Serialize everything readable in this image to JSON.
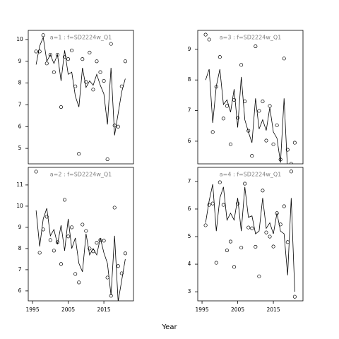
{
  "xlabel": "Year",
  "chart_data": [
    {
      "type": "scatter",
      "title": "a=1  :  f=SD2224w_Q1",
      "color": "#000000",
      "x": [
        1996,
        1997,
        1998,
        1999,
        2000,
        2001,
        2002,
        2003,
        2004,
        2005,
        2006,
        2007,
        2008,
        2009,
        2010,
        2011,
        2012,
        2013,
        2014,
        2015,
        2016,
        2017,
        2018,
        2019,
        2020,
        2021
      ],
      "values": [
        9.45,
        9.45,
        10.2,
        8.9,
        9.3,
        8.5,
        9.3,
        6.9,
        9.2,
        9.1,
        9.5,
        7.85,
        4.75,
        9.1,
        8.05,
        9.4,
        7.7,
        9.0,
        8.5,
        8.1,
        4.5,
        9.8,
        6.05,
        6.0,
        7.85,
        9.0
      ],
      "line_values": [
        8.85,
        9.7,
        10.1,
        9.0,
        9.3,
        8.9,
        9.3,
        8.1,
        9.5,
        8.4,
        8.5,
        7.4,
        6.9,
        8.7,
        7.8,
        8.1,
        7.9,
        8.4,
        7.9,
        7.5,
        6.1,
        8.7,
        5.6,
        6.6,
        7.6,
        8.2
      ],
      "xlim": [
        1993.8,
        2023.3
      ],
      "ylim": [
        4.29,
        10.42
      ],
      "yticks": [
        5,
        6,
        7,
        8,
        9,
        10
      ]
    },
    {
      "type": "scatter",
      "title": "a=3  :  f=SD2224w_Q1",
      "color": "#000000",
      "x": [
        1996,
        1997,
        1998,
        1999,
        2000,
        2001,
        2002,
        2003,
        2004,
        2005,
        2006,
        2007,
        2008,
        2009,
        2010,
        2011,
        2012,
        2013,
        2014,
        2015,
        2016,
        2017,
        2018,
        2019,
        2020,
        2021
      ],
      "values": [
        9.48,
        9.32,
        6.3,
        7.78,
        8.75,
        6.74,
        7.15,
        5.9,
        7.35,
        6.76,
        8.49,
        7.3,
        6.34,
        5.52,
        9.1,
        6.99,
        7.3,
        6.02,
        7.15,
        5.9,
        6.52,
        5.4,
        8.7,
        5.72,
        5.26,
        5.95
      ],
      "line_values": [
        8.0,
        8.35,
        6.6,
        7.8,
        8.35,
        7.2,
        7.35,
        6.95,
        7.7,
        6.45,
        8.1,
        6.7,
        6.3,
        5.95,
        7.4,
        6.4,
        6.7,
        6.35,
        7.1,
        6.3,
        6.1,
        5.3,
        7.4,
        5.0,
        5.2,
        4.9
      ],
      "xlim": [
        1993.8,
        2023.3
      ],
      "ylim": [
        5.26,
        9.62
      ],
      "yticks": [
        6,
        7,
        8,
        9
      ]
    },
    {
      "type": "scatter",
      "title": "a=2  :  f=SD2224w_Q1",
      "color": "#000000",
      "x": [
        1996,
        1997,
        1998,
        1999,
        2000,
        2001,
        2002,
        2003,
        2004,
        2005,
        2006,
        2007,
        2008,
        2009,
        2010,
        2011,
        2012,
        2013,
        2014,
        2015,
        2016,
        2017,
        2018,
        2019,
        2020,
        2021
      ],
      "values": [
        11.63,
        7.8,
        8.9,
        9.5,
        8.4,
        7.9,
        8.3,
        7.27,
        10.3,
        8.57,
        9.0,
        6.8,
        6.4,
        9.13,
        8.83,
        8.0,
        7.87,
        8.27,
        8.4,
        8.37,
        6.63,
        5.77,
        9.93,
        7.17,
        6.83,
        7.77
      ],
      "line_values": [
        9.8,
        8.1,
        9.4,
        9.9,
        8.6,
        8.9,
        8.2,
        9.1,
        7.9,
        9.4,
        8.0,
        8.5,
        7.3,
        6.9,
        8.7,
        7.7,
        8.0,
        7.7,
        8.5,
        7.8,
        7.3,
        5.8,
        8.6,
        5.5,
        6.5,
        7.5
      ],
      "xlim": [
        1993.8,
        2023.3
      ],
      "ylim": [
        5.53,
        11.83
      ],
      "yticks": [
        6,
        7,
        8,
        9,
        10,
        11
      ],
      "xticks": [
        1995,
        2005,
        2015
      ]
    },
    {
      "type": "scatter",
      "title": "a=4  :  f=SD2224w_Q1",
      "color": "#000000",
      "x": [
        1996,
        1997,
        1998,
        1999,
        2000,
        2001,
        2002,
        2003,
        2004,
        2005,
        2006,
        2007,
        2008,
        2009,
        2010,
        2011,
        2012,
        2013,
        2014,
        2015,
        2016,
        2017,
        2018,
        2019,
        2020,
        2021
      ],
      "values": [
        5.41,
        6.15,
        6.2,
        4.05,
        6.97,
        6.15,
        4.5,
        4.82,
        3.9,
        6.2,
        4.6,
        6.92,
        5.33,
        5.3,
        4.63,
        3.56,
        6.67,
        5.15,
        5.0,
        4.64,
        5.85,
        5.44,
        6.1,
        4.8,
        7.36,
        2.82
      ],
      "line_values": [
        5.5,
        6.3,
        6.9,
        5.2,
        6.4,
        6.8,
        5.6,
        5.85,
        5.6,
        6.4,
        5.2,
        6.8,
        5.7,
        5.75,
        5.1,
        5.2,
        6.4,
        5.3,
        5.5,
        5.1,
        5.85,
        5.2,
        5.1,
        3.6,
        6.4,
        3.0
      ],
      "xlim": [
        1993.8,
        2023.3
      ],
      "ylim": [
        2.67,
        7.51
      ],
      "yticks": [
        3,
        4,
        5,
        6,
        7
      ],
      "xticks": [
        1995,
        2005,
        2015
      ]
    }
  ]
}
